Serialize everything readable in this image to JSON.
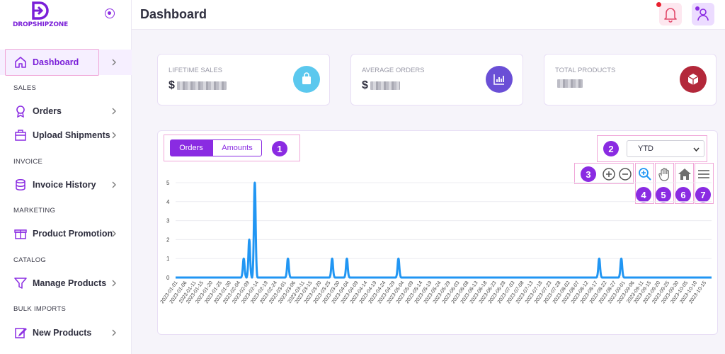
{
  "app": {
    "logo_text": "DROPSHIPZONE"
  },
  "header": {
    "title": "Dashboard"
  },
  "sidebar": {
    "items": [
      {
        "label": "Dashboard",
        "icon": "home-icon"
      },
      {
        "section": "SALES"
      },
      {
        "label": "Orders",
        "icon": "award-icon"
      },
      {
        "label": "Upload Shipments",
        "icon": "package-icon"
      },
      {
        "section": "INVOICE"
      },
      {
        "label": "Invoice History",
        "icon": "database-icon"
      },
      {
        "section": "MARKETING"
      },
      {
        "label": "Product Promotion",
        "icon": "gift-icon"
      },
      {
        "section": "CATALOG"
      },
      {
        "label": "Manage Products",
        "icon": "filter-icon"
      },
      {
        "section": "BULK IMPORTS"
      },
      {
        "label": "New Products",
        "icon": "edit-icon"
      }
    ]
  },
  "cards": [
    {
      "title": "LIFETIME SALES",
      "prefix": "$",
      "icon": "shopping-bag-icon",
      "color": "#5bc8ee"
    },
    {
      "title": "AVERAGE ORDERS",
      "prefix": "$",
      "icon": "bar-chart-icon",
      "color": "#6a4fd6"
    },
    {
      "title": "TOTAL PRODUCTS",
      "prefix": "",
      "icon": "box-icon",
      "color": "#b3283a"
    }
  ],
  "chart_panel": {
    "toggle": {
      "orders": "Orders",
      "amounts": "Amounts"
    },
    "range_select": "YTD",
    "annotations": [
      "1",
      "2",
      "3",
      "4",
      "5",
      "6",
      "7"
    ]
  },
  "colors": {
    "accent": "#8a2be2",
    "line": "#2196f3"
  },
  "chart_data": {
    "type": "line",
    "x_start": "2023-01-01",
    "x_step_days": 1,
    "x_labels": [
      "2023-01-01",
      "2023-01-06",
      "2023-01-11",
      "2023-01-15",
      "2023-01-20",
      "2023-01-25",
      "2023-01-30",
      "2023-02-04",
      "2023-02-09",
      "2023-02-14",
      "2023-02-19",
      "2023-02-24",
      "2023-03-01",
      "2023-03-06",
      "2023-03-11",
      "2023-03-15",
      "2023-03-20",
      "2023-03-25",
      "2023-03-30",
      "2023-04-04",
      "2023-04-09",
      "2023-04-14",
      "2023-04-19",
      "2023-04-24",
      "2023-04-29",
      "2023-05-04",
      "2023-05-09",
      "2023-05-14",
      "2023-05-19",
      "2023-05-24",
      "2023-05-29",
      "2023-06-03",
      "2023-06-08",
      "2023-06-13",
      "2023-06-18",
      "2023-06-23",
      "2023-06-28",
      "2023-07-03",
      "2023-07-08",
      "2023-07-13",
      "2023-07-18",
      "2023-07-23",
      "2023-07-28",
      "2023-08-02",
      "2023-08-07",
      "2023-08-12",
      "2023-08-17",
      "2023-08-22",
      "2023-08-27",
      "2023-09-01",
      "2023-09-06",
      "2023-09-11",
      "2023-09-15",
      "2023-09-20",
      "2023-09-25",
      "2023-09-30",
      "2023-10-05",
      "2023-10-10",
      "2023-10-15"
    ],
    "y_ticks": [
      0,
      1,
      2,
      3,
      4,
      5
    ],
    "ylim": [
      0,
      5
    ],
    "x_end": "2023-10-19",
    "points": [
      {
        "x": "2023-02-07",
        "y": 1
      },
      {
        "x": "2023-02-10",
        "y": 2
      },
      {
        "x": "2023-02-13",
        "y": 5
      },
      {
        "x": "2023-03-03",
        "y": 1
      },
      {
        "x": "2023-03-27",
        "y": 1
      },
      {
        "x": "2023-04-04",
        "y": 1
      },
      {
        "x": "2023-05-02",
        "y": 1
      },
      {
        "x": "2023-08-19",
        "y": 1
      },
      {
        "x": "2023-08-31",
        "y": 1
      }
    ]
  }
}
